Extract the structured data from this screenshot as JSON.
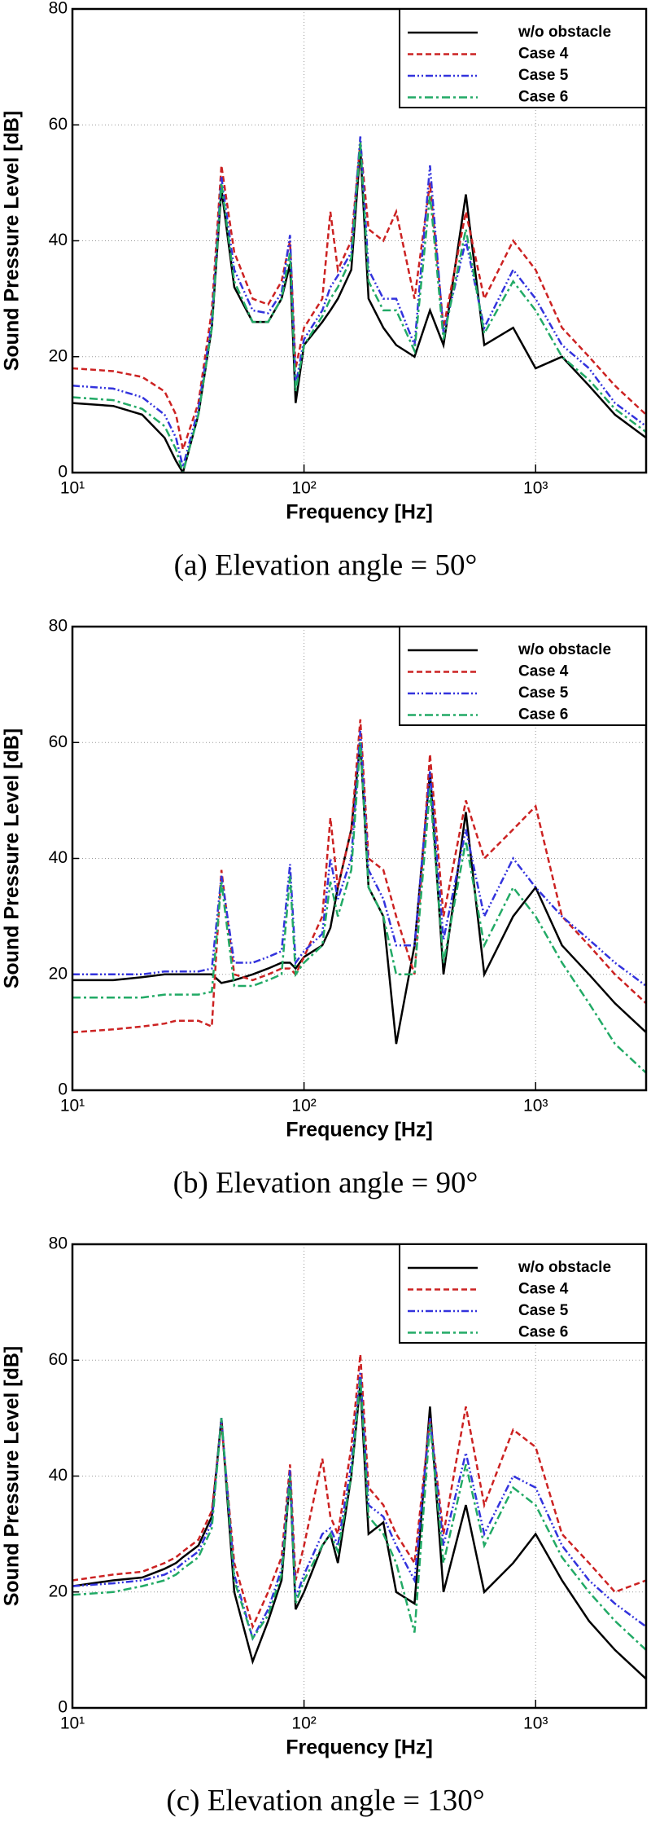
{
  "chart_data": [
    {
      "type": "line",
      "title": "(a)  Elevation  angle = 50°",
      "xlabel": "Frequency [Hz]",
      "ylabel": "Sound Pressure Level [dB]",
      "log_x": true,
      "grid": true,
      "legend": "upper right",
      "xlim": [
        10,
        3000
      ],
      "ylim": [
        0,
        80
      ],
      "yticks": [
        0,
        20,
        40,
        60,
        80
      ],
      "xticks": [
        {
          "value": 10,
          "label": "10¹"
        },
        {
          "value": 100,
          "label": "10²"
        },
        {
          "value": 1000,
          "label": "10³"
        }
      ],
      "x": [
        10,
        15,
        20,
        25,
        28,
        30,
        35,
        40,
        44,
        50,
        60,
        70,
        80,
        87,
        92,
        100,
        120,
        130,
        140,
        160,
        175,
        190,
        220,
        250,
        300,
        350,
        400,
        500,
        600,
        800,
        1000,
        1300,
        1700,
        2200,
        3000
      ],
      "series": [
        {
          "name": "w/o obstacle",
          "color": "#000000",
          "values": [
            12,
            11.5,
            10,
            6,
            2,
            0,
            10,
            25,
            49,
            32,
            26,
            26,
            30,
            36,
            12,
            22,
            26,
            28,
            30,
            35,
            56,
            30,
            25,
            22,
            20,
            28,
            22,
            48,
            22,
            25,
            18,
            20,
            15,
            10,
            6
          ]
        },
        {
          "name": "Case 4",
          "color": "#cc2222",
          "values": [
            18,
            17.5,
            16.5,
            14,
            10,
            4,
            12,
            28,
            53,
            38,
            30,
            29,
            33,
            40,
            18,
            25,
            30,
            45,
            35,
            40,
            57,
            42,
            40,
            45,
            30,
            50,
            25,
            45,
            30,
            40,
            35,
            25,
            20,
            15,
            10
          ]
        },
        {
          "name": "Case 5",
          "color": "#3333dd",
          "values": [
            15,
            14.5,
            13,
            10,
            6,
            1,
            11,
            26,
            51,
            35,
            28,
            27.5,
            31,
            41,
            15,
            23,
            28,
            32,
            34,
            38,
            58,
            35,
            30,
            30,
            22,
            53,
            24,
            40,
            25,
            35,
            30,
            22,
            18,
            12,
            8
          ]
        },
        {
          "name": "Case 6",
          "color": "#22aa66",
          "values": [
            13,
            12.5,
            11,
            8,
            4,
            0,
            10,
            25,
            50,
            33,
            26,
            26,
            30,
            38,
            14,
            22,
            27,
            30,
            32,
            37,
            57,
            33,
            28,
            28,
            21,
            48,
            23,
            42,
            24,
            33,
            28,
            20,
            16,
            11,
            7
          ]
        }
      ]
    },
    {
      "type": "line",
      "title": "(b)  Elevation  angle = 90°",
      "xlabel": "Frequency [Hz]",
      "ylabel": "Sound Pressure Level [dB]",
      "log_x": true,
      "grid": true,
      "legend": "upper right",
      "xlim": [
        10,
        3000
      ],
      "ylim": [
        0,
        80
      ],
      "yticks": [
        0,
        20,
        40,
        60,
        80
      ],
      "xticks": [
        {
          "value": 10,
          "label": "10¹"
        },
        {
          "value": 100,
          "label": "10²"
        },
        {
          "value": 1000,
          "label": "10³"
        }
      ],
      "x": [
        10,
        15,
        20,
        25,
        28,
        30,
        35,
        40,
        44,
        50,
        60,
        70,
        80,
        87,
        92,
        100,
        120,
        130,
        140,
        160,
        175,
        190,
        220,
        250,
        300,
        350,
        400,
        500,
        600,
        800,
        1000,
        1300,
        1700,
        2200,
        3000
      ],
      "series": [
        {
          "name": "w/o obstacle",
          "color": "#000000",
          "values": [
            19,
            19,
            19.5,
            20,
            20,
            20,
            20,
            20,
            18.5,
            19,
            20,
            21,
            22,
            22,
            21,
            23,
            25,
            28,
            35,
            45,
            60,
            35,
            30,
            8,
            25,
            55,
            20,
            48,
            20,
            30,
            35,
            25,
            20,
            15,
            10
          ]
        },
        {
          "name": "Case 4",
          "color": "#cc2222",
          "values": [
            10,
            10.5,
            11,
            11.5,
            12,
            12,
            12,
            11,
            38,
            20,
            19,
            20,
            21,
            21,
            20,
            23,
            30,
            47,
            35,
            45,
            64,
            40,
            38,
            30,
            20,
            58,
            30,
            50,
            40,
            45,
            49,
            30,
            25,
            20,
            15
          ]
        },
        {
          "name": "Case 5",
          "color": "#3333dd",
          "values": [
            20,
            20,
            20,
            20.5,
            20.5,
            20.5,
            20.5,
            21,
            37,
            22,
            22,
            23,
            24,
            39,
            22,
            24,
            27,
            40,
            33,
            40,
            62,
            38,
            33,
            25,
            25,
            55,
            26,
            45,
            30,
            40,
            35,
            30,
            26,
            22,
            18
          ]
        },
        {
          "name": "Case 6",
          "color": "#22aa66",
          "values": [
            16,
            16,
            16,
            16.5,
            16.5,
            16.5,
            16.5,
            17,
            36,
            18,
            18,
            19,
            20,
            37,
            20,
            22,
            25,
            36,
            30,
            38,
            60,
            35,
            30,
            20,
            20,
            52,
            22,
            43,
            25,
            35,
            30,
            22,
            15,
            8,
            3
          ]
        }
      ]
    },
    {
      "type": "line",
      "title": "(c)  Elevation  angle = 130°",
      "xlabel": "Frequency [Hz]",
      "ylabel": "Sound Pressure Level [dB]",
      "log_x": true,
      "grid": true,
      "legend": "upper right",
      "xlim": [
        10,
        3000
      ],
      "ylim": [
        0,
        80
      ],
      "yticks": [
        0,
        20,
        40,
        60,
        80
      ],
      "xticks": [
        {
          "value": 10,
          "label": "10¹"
        },
        {
          "value": 100,
          "label": "10²"
        },
        {
          "value": 1000,
          "label": "10³"
        }
      ],
      "x": [
        10,
        15,
        20,
        25,
        28,
        30,
        35,
        40,
        44,
        50,
        60,
        70,
        80,
        87,
        92,
        100,
        120,
        130,
        140,
        160,
        175,
        190,
        220,
        250,
        300,
        350,
        400,
        500,
        600,
        800,
        1000,
        1300,
        1700,
        2200,
        3000
      ],
      "series": [
        {
          "name": "w/o obstacle",
          "color": "#000000",
          "values": [
            21,
            22,
            22.5,
            24,
            25,
            26,
            28,
            33,
            50,
            20,
            8,
            15,
            22,
            40,
            17,
            20,
            28,
            30,
            25,
            40,
            56,
            30,
            32,
            20,
            18,
            52,
            20,
            35,
            20,
            25,
            30,
            22,
            15,
            10,
            5
          ]
        },
        {
          "name": "Case 4",
          "color": "#cc2222",
          "values": [
            22,
            23,
            23.5,
            25,
            26,
            27,
            29,
            34,
            49,
            25,
            14,
            20,
            26,
            42,
            22,
            28,
            43,
            33,
            30,
            45,
            61,
            38,
            35,
            30,
            25,
            50,
            30,
            52,
            35,
            48,
            45,
            30,
            25,
            20,
            22
          ]
        },
        {
          "name": "Case 5",
          "color": "#3333dd",
          "values": [
            21,
            21.5,
            22,
            23,
            24,
            25,
            27,
            32,
            50,
            23,
            12,
            17,
            24,
            41,
            19,
            23,
            30,
            31,
            28,
            42,
            58,
            35,
            33,
            28,
            22,
            50,
            28,
            44,
            30,
            40,
            38,
            28,
            22,
            18,
            14
          ]
        },
        {
          "name": "Case 6",
          "color": "#22aa66",
          "values": [
            19.5,
            20,
            21,
            22,
            23,
            24,
            26,
            31,
            50,
            22,
            12,
            16,
            23,
            40,
            18,
            22,
            28,
            30,
            27,
            40,
            57,
            33,
            30,
            25,
            13,
            49,
            25,
            42,
            28,
            38,
            35,
            26,
            20,
            15,
            10
          ]
        }
      ]
    }
  ]
}
